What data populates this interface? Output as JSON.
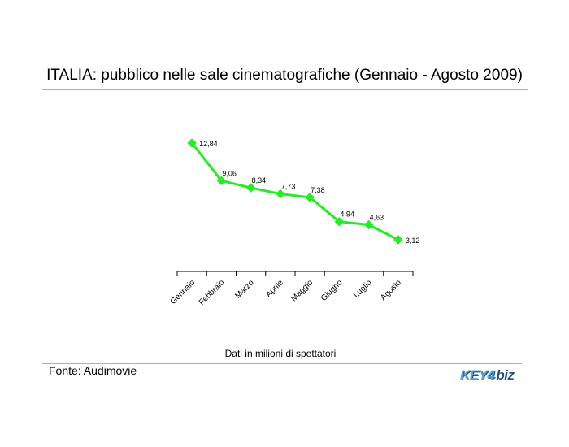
{
  "title": "ITALIA: pubblico nelle sale cinematografiche (Gennaio - Agosto 2009)",
  "note": "Dati in milioni di spettatori",
  "source": "Fonte: Audimovie",
  "logo": {
    "key": "KEY4",
    "biz": "biz"
  },
  "colors": {
    "series": "#22ee22",
    "axis": "#000000",
    "rule": "#b0b0b0"
  },
  "chart_data": {
    "type": "line",
    "categories": [
      "Gennaio",
      "Febbraio",
      "Marzo",
      "Aprile",
      "Maggio",
      "Giugno",
      "Luglio",
      "Agosto"
    ],
    "values": [
      12.84,
      9.06,
      8.34,
      7.73,
      7.38,
      4.94,
      4.63,
      3.12
    ],
    "value_labels": [
      "12,84",
      "9,06",
      "8,34",
      "7,73",
      "7,38",
      "4,94",
      "4,63",
      "3,12"
    ],
    "ylim": [
      0,
      14
    ],
    "grid": false,
    "legend": "none"
  }
}
